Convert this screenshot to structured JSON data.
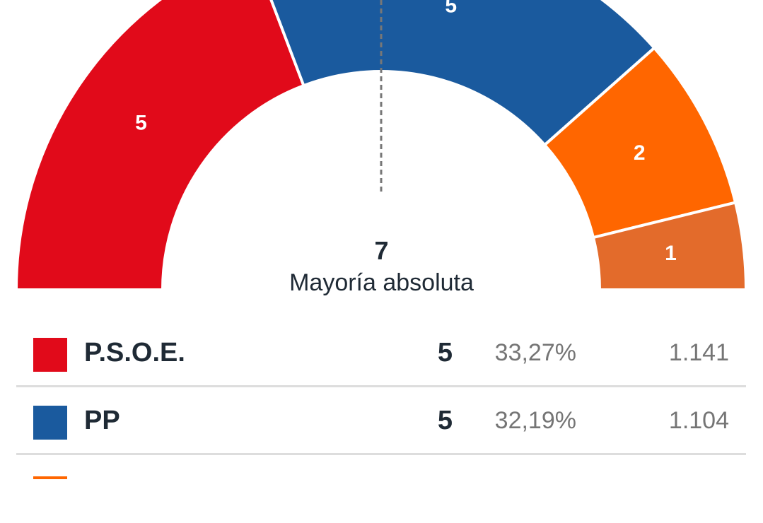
{
  "chart_data": {
    "type": "pie",
    "subtype": "parliament-half-donut",
    "total_seats": 13,
    "majority": {
      "seats": "7",
      "label": "Mayoría absoluta"
    },
    "series": [
      {
        "name": "P.S.O.E.",
        "seats": 5,
        "color": "#e10a1a"
      },
      {
        "name": "PP",
        "seats": 5,
        "color": "#1a5a9e"
      },
      {
        "name": "",
        "seats": 2,
        "color": "#ff6600"
      },
      {
        "name": "",
        "seats": 1,
        "color": "#e36b2b"
      }
    ]
  },
  "legend": {
    "rows": [
      {
        "name": "P.S.O.E.",
        "color": "#e10a1a",
        "seats": "5",
        "percent": "33,27%",
        "votes": "1.141"
      },
      {
        "name": "PP",
        "color": "#1a5a9e",
        "seats": "5",
        "percent": "32,19%",
        "votes": "1.104"
      }
    ],
    "partial_row_color": "#ff6600"
  }
}
